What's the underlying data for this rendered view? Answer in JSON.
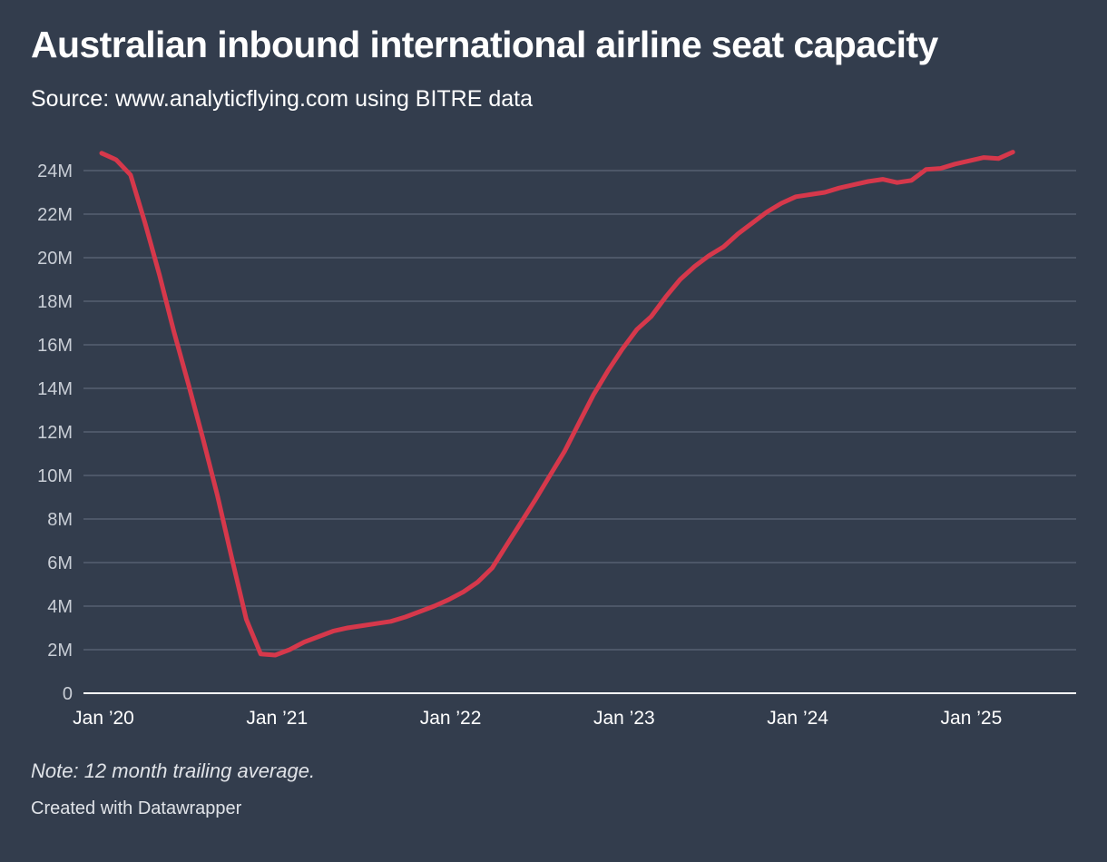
{
  "title": "Australian inbound international airline seat capacity",
  "subtitle": "Source: www.analyticflying.com using BITRE data",
  "note": "Note: 12 month trailing average.",
  "credit": "Created with Datawrapper",
  "colors": {
    "background": "#333d4d",
    "series": "#d6384b",
    "gridline": "#566072",
    "baseline": "#ffffff"
  },
  "chart_data": {
    "type": "line",
    "title": "Australian inbound international airline seat capacity",
    "xlabel": "",
    "ylabel": "",
    "x_start": "Jan 2020",
    "x_end": "Jul 2025",
    "x_unit": "months since Jan 2020",
    "ylim": [
      0,
      25000000
    ],
    "y_ticks": [
      {
        "value": 0,
        "label": "0"
      },
      {
        "value": 2000000,
        "label": "2M"
      },
      {
        "value": 4000000,
        "label": "4M"
      },
      {
        "value": 6000000,
        "label": "6M"
      },
      {
        "value": 8000000,
        "label": "8M"
      },
      {
        "value": 10000000,
        "label": "10M"
      },
      {
        "value": 12000000,
        "label": "12M"
      },
      {
        "value": 14000000,
        "label": "14M"
      },
      {
        "value": 16000000,
        "label": "16M"
      },
      {
        "value": 18000000,
        "label": "18M"
      },
      {
        "value": 20000000,
        "label": "20M"
      },
      {
        "value": 22000000,
        "label": "22M"
      },
      {
        "value": 24000000,
        "label": "24M"
      }
    ],
    "x_ticks": [
      {
        "month": 0,
        "label": "Jan ’20"
      },
      {
        "month": 12,
        "label": "Jan ’21"
      },
      {
        "month": 24,
        "label": "Jan ’22"
      },
      {
        "month": 36,
        "label": "Jan ’23"
      },
      {
        "month": 48,
        "label": "Jan ’24"
      },
      {
        "month": 60,
        "label": "Jan ’25"
      }
    ],
    "series": [
      {
        "name": "Seat capacity (12 month trailing average)",
        "values": [
          24.8,
          24.5,
          23.8,
          21.6,
          19.2,
          16.6,
          14.2,
          11.7,
          9.1,
          6.2,
          3.4,
          1.8,
          1.75,
          2.0,
          2.35,
          2.6,
          2.85,
          3.0,
          3.1,
          3.2,
          3.3,
          3.5,
          3.75,
          4.0,
          4.3,
          4.65,
          5.1,
          5.75,
          6.8,
          7.85,
          8.9,
          10.0,
          11.1,
          12.4,
          13.7,
          14.8,
          15.8,
          16.7,
          17.3,
          18.2,
          19.0,
          19.6,
          20.1,
          20.5,
          21.1,
          21.6,
          22.1,
          22.5,
          22.8,
          22.9,
          23.0,
          23.2,
          23.35,
          23.5,
          23.6,
          23.45,
          23.55,
          24.05,
          24.1,
          24.3,
          24.45,
          24.6,
          24.55,
          24.85
        ],
        "value_unit": "millions of seats"
      }
    ]
  }
}
